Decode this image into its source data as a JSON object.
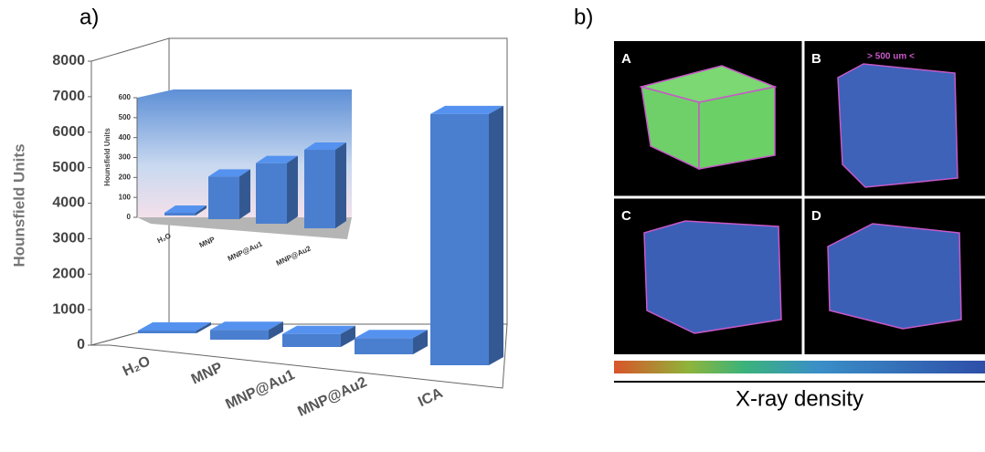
{
  "chart_data": [
    {
      "type": "bar",
      "panel_label": "a)",
      "y_label": "Hounsfield Units",
      "categories": [
        "H₂O",
        "MNP",
        "MNP@Au1",
        "MNP@Au2",
        "ICA"
      ],
      "values": [
        0,
        200,
        290,
        380,
        7000
      ],
      "color": "#4a7fd0",
      "ylim": [
        0,
        8000
      ],
      "yticks": [
        0,
        1000,
        2000,
        3000,
        4000,
        5000,
        6000,
        7000,
        8000
      ]
    },
    {
      "type": "bar",
      "y_label": "Hounsfield Units",
      "categories": [
        "H₂O",
        "MNP",
        "MNP@Au1",
        "MNP@Au2"
      ],
      "values": [
        0,
        200,
        290,
        380
      ],
      "color": "#4a7fd0",
      "ylim": [
        0,
        600
      ],
      "yticks": [
        0,
        100,
        200,
        300,
        400,
        500,
        600
      ]
    }
  ],
  "panel_b": {
    "panel_label": "b)",
    "images": [
      "A",
      "B",
      "C",
      "D"
    ],
    "annotation": "> 500 um <",
    "colorbar_label": "X-ray density"
  }
}
